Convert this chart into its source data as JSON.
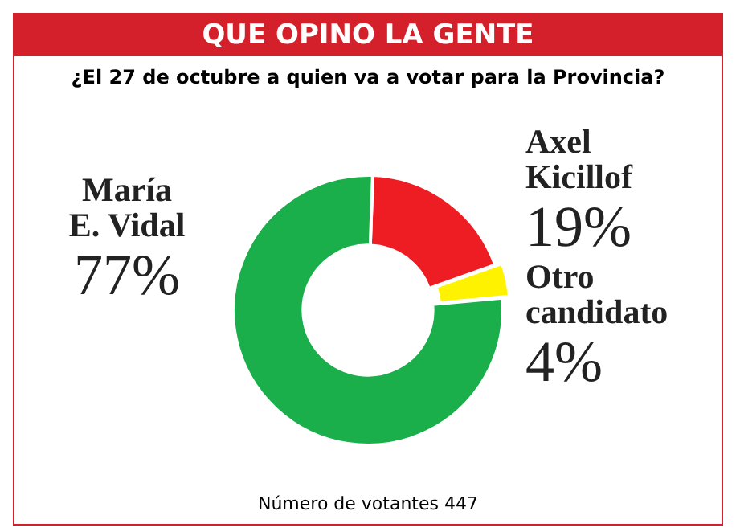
{
  "chart_data": {
    "type": "donut",
    "title": "QUE OPINO LA GENTE",
    "subtitle": "¿El 27 de octubre a quien va a votar para la Provincia?",
    "categories": [
      "Axel Kicillof",
      "Otro candidato",
      "María E. Vidal"
    ],
    "values": [
      19,
      4,
      77
    ],
    "value_labels": [
      "19%",
      "4%",
      "77%"
    ],
    "colors": [
      "#ee1d23",
      "#fff200",
      "#1aaf4b"
    ],
    "annotations": [
      "Número de votantes 447"
    ],
    "legend": false
  }
}
